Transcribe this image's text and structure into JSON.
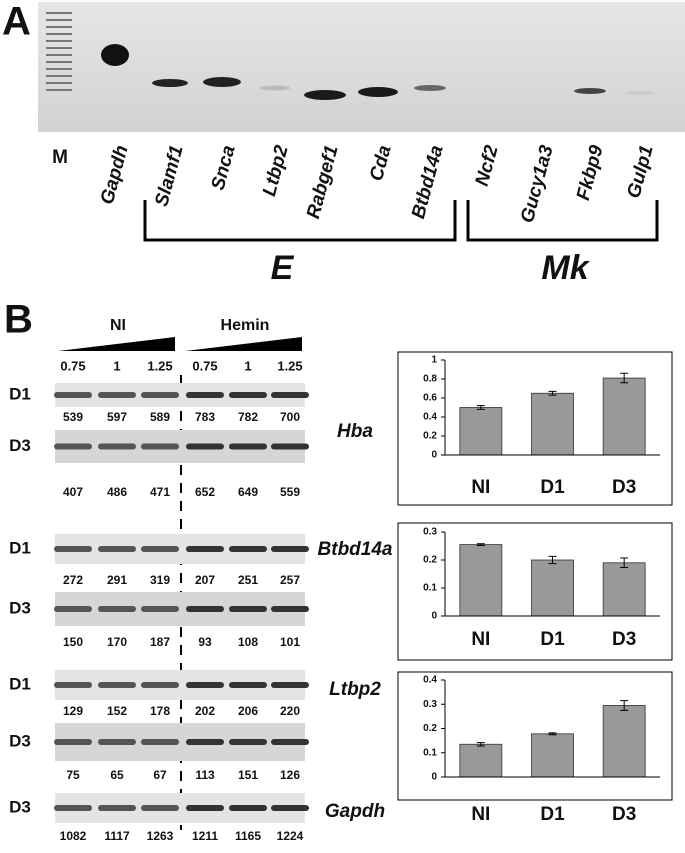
{
  "panel_a": {
    "label": "A",
    "lanes": [
      "M",
      "Gapdh",
      "Slamf1",
      "Snca",
      "Ltbp2",
      "Rabgef1",
      "Cda",
      "Btbd14a",
      "Ncf2",
      "Gucy1a3",
      "Fkbp9",
      "Gulp1"
    ],
    "groups": [
      "E",
      "Mk"
    ]
  },
  "panel_b": {
    "label": "B",
    "conditions": [
      "NI",
      "Hemin"
    ],
    "doses": [
      0.75,
      1,
      1.25,
      0.75,
      1,
      1.25
    ],
    "genes": [
      {
        "name": "Hba",
        "rows": [
          {
            "day": "D1",
            "values": [
              539,
              597,
              589,
              783,
              782,
              700
            ]
          },
          {
            "day": "D3",
            "values": [
              407,
              486,
              471,
              652,
              649,
              559
            ]
          }
        ]
      },
      {
        "name": "Btbd14a",
        "rows": [
          {
            "day": "D1",
            "values": [
              272,
              291,
              319,
              207,
              251,
              257
            ]
          },
          {
            "day": "D3",
            "values": [
              150,
              170,
              187,
              93,
              108,
              101
            ]
          }
        ]
      },
      {
        "name": "Ltbp2",
        "rows": [
          {
            "day": "D1",
            "values": [
              129,
              152,
              178,
              202,
              206,
              220
            ]
          },
          {
            "day": "D3",
            "values": [
              75,
              65,
              67,
              113,
              151,
              126
            ]
          }
        ]
      },
      {
        "name": "Gapdh",
        "rows": [
          {
            "day": "D3",
            "values": [
              1082,
              1117,
              1263,
              1211,
              1165,
              1224
            ]
          }
        ]
      }
    ]
  },
  "chart_data": [
    {
      "type": "bar",
      "categories": [
        "NI",
        "D1",
        "D3"
      ],
      "values": [
        0.5,
        0.65,
        0.81
      ],
      "errors": [
        0.02,
        0.02,
        0.05
      ],
      "color": "#999999",
      "ylim": [
        0,
        1
      ],
      "yticks": [
        0,
        0.2,
        0.4,
        0.6,
        0.8,
        1
      ]
    },
    {
      "type": "bar",
      "categories": [
        "NI",
        "D1",
        "D3"
      ],
      "values": [
        0.255,
        0.2,
        0.19
      ],
      "errors": [
        0.003,
        0.013,
        0.017
      ],
      "color": "#999999",
      "ylim": [
        0,
        0.3
      ],
      "yticks": [
        0,
        0.1,
        0.2,
        0.3
      ]
    },
    {
      "type": "bar",
      "categories": [
        "NI",
        "D1",
        "D3"
      ],
      "values": [
        0.135,
        0.178,
        0.295
      ],
      "errors": [
        0.007,
        0.004,
        0.02
      ],
      "color": "#999999",
      "ylim": [
        0,
        0.4
      ],
      "yticks": [
        0,
        0.1,
        0.2,
        0.3,
        0.4
      ]
    }
  ]
}
